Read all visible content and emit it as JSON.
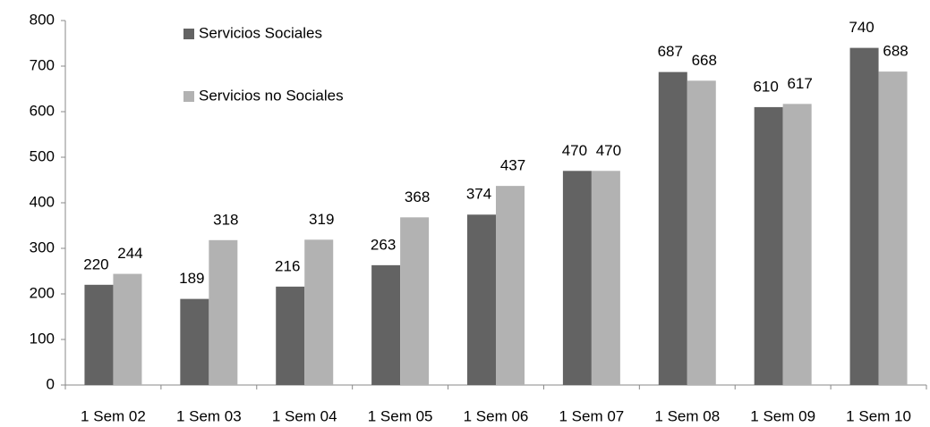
{
  "chart_data": {
    "type": "bar",
    "categories": [
      "1 Sem 02",
      "1 Sem 03",
      "1 Sem 04",
      "1 Sem 05",
      "1 Sem 06",
      "1 Sem 07",
      "1 Sem 08",
      "1 Sem 09",
      "1 Sem 10"
    ],
    "series": [
      {
        "name": "Servicios Sociales",
        "color": "#636363",
        "values": [
          220,
          189,
          216,
          263,
          374,
          470,
          687,
          610,
          740
        ]
      },
      {
        "name": "Servicios no Sociales",
        "color": "#b2b2b2",
        "values": [
          244,
          318,
          319,
          368,
          437,
          470,
          668,
          617,
          688
        ]
      }
    ],
    "ylim": [
      0,
      800
    ],
    "yticks": [
      0,
      100,
      200,
      300,
      400,
      500,
      600,
      700,
      800
    ],
    "grid": false,
    "legend": "upper left",
    "data_labels": true
  }
}
